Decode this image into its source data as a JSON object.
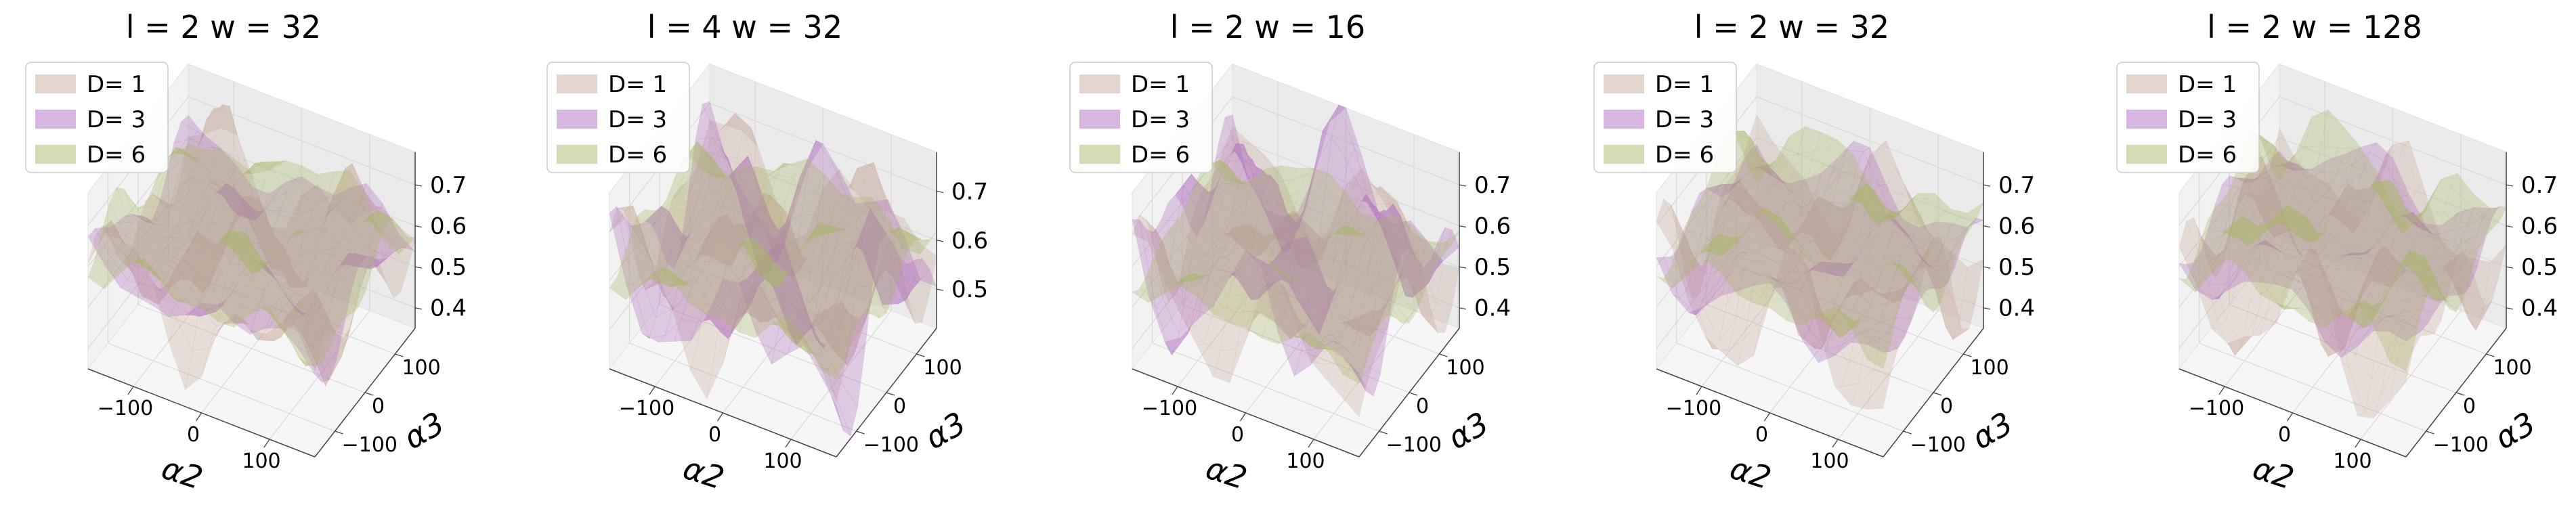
{
  "chart_data": [
    {
      "type": "surface3d",
      "title": "l = 2 w = 32",
      "xlabel": "α2",
      "ylabel": "α3",
      "xticks": [
        "−100",
        "0",
        "100"
      ],
      "yticks": [
        "−100",
        "0",
        "100"
      ],
      "zticks": [
        "0.4",
        "0.5",
        "0.6",
        "0.7"
      ],
      "zlim": [
        0.35,
        0.78
      ],
      "legend_position": "upper-left",
      "series": [
        {
          "name": "D= 1",
          "color": "#c9ab9f",
          "amplitude": 0.12,
          "offset": 0.0
        },
        {
          "name": "D= 3",
          "color": "#b06fc0",
          "amplitude": 0.06,
          "offset": 0.03
        },
        {
          "name": "D= 6",
          "color": "#a9b76a",
          "amplitude": 0.07,
          "offset": 0.05
        }
      ]
    },
    {
      "type": "surface3d",
      "title": "l = 4 w = 32",
      "xlabel": "α2",
      "ylabel": "α3",
      "xticks": [
        "−100",
        "0",
        "100"
      ],
      "yticks": [
        "−100",
        "0",
        "100"
      ],
      "zticks": [
        "0.5",
        "0.6",
        "0.7"
      ],
      "zlim": [
        0.42,
        0.78
      ],
      "legend_position": "upper-left",
      "series": [
        {
          "name": "D= 1",
          "color": "#c9ab9f",
          "amplitude": 0.1,
          "offset": 0.0
        },
        {
          "name": "D= 3",
          "color": "#b06fc0",
          "amplitude": 0.11,
          "offset": 0.0
        },
        {
          "name": "D= 6",
          "color": "#a9b76a",
          "amplitude": 0.06,
          "offset": 0.02
        }
      ]
    },
    {
      "type": "surface3d",
      "title": "l = 2 w = 16",
      "xlabel": "α2",
      "ylabel": "α3",
      "xticks": [
        "−100",
        "0",
        "100"
      ],
      "yticks": [
        "−100",
        "0",
        "100"
      ],
      "zticks": [
        "0.4",
        "0.5",
        "0.6",
        "0.7"
      ],
      "zlim": [
        0.35,
        0.78
      ],
      "legend_position": "upper-left",
      "series": [
        {
          "name": "D= 1",
          "color": "#c9ab9f",
          "amplitude": 0.1,
          "offset": -0.02
        },
        {
          "name": "D= 3",
          "color": "#b06fc0",
          "amplitude": 0.13,
          "offset": 0.03
        },
        {
          "name": "D= 6",
          "color": "#a9b76a",
          "amplitude": 0.05,
          "offset": 0.0
        }
      ]
    },
    {
      "type": "surface3d",
      "title": "l = 2 w = 32",
      "xlabel": "α2",
      "ylabel": "α3",
      "xticks": [
        "−100",
        "0",
        "100"
      ],
      "yticks": [
        "−100",
        "0",
        "100"
      ],
      "zticks": [
        "0.4",
        "0.5",
        "0.6",
        "0.7"
      ],
      "zlim": [
        0.35,
        0.78
      ],
      "legend_position": "upper-left",
      "series": [
        {
          "name": "D= 1",
          "color": "#c9ab9f",
          "amplitude": 0.12,
          "offset": 0.0
        },
        {
          "name": "D= 3",
          "color": "#b06fc0",
          "amplitude": 0.06,
          "offset": 0.03
        },
        {
          "name": "D= 6",
          "color": "#a9b76a",
          "amplitude": 0.07,
          "offset": 0.05
        }
      ]
    },
    {
      "type": "surface3d",
      "title": "l = 2 w = 128",
      "xlabel": "α2",
      "ylabel": "α3",
      "xticks": [
        "−100",
        "0",
        "100"
      ],
      "yticks": [
        "−100",
        "0",
        "100"
      ],
      "zticks": [
        "0.4",
        "0.5",
        "0.6",
        "0.7"
      ],
      "zlim": [
        0.35,
        0.78
      ],
      "legend_position": "upper-left",
      "series": [
        {
          "name": "D= 1",
          "color": "#c9ab9f",
          "amplitude": 0.12,
          "offset": 0.0
        },
        {
          "name": "D= 3",
          "color": "#b06fc0",
          "amplitude": 0.05,
          "offset": 0.04
        },
        {
          "name": "D= 6",
          "color": "#a9b76a",
          "amplitude": 0.08,
          "offset": 0.05
        }
      ]
    }
  ]
}
